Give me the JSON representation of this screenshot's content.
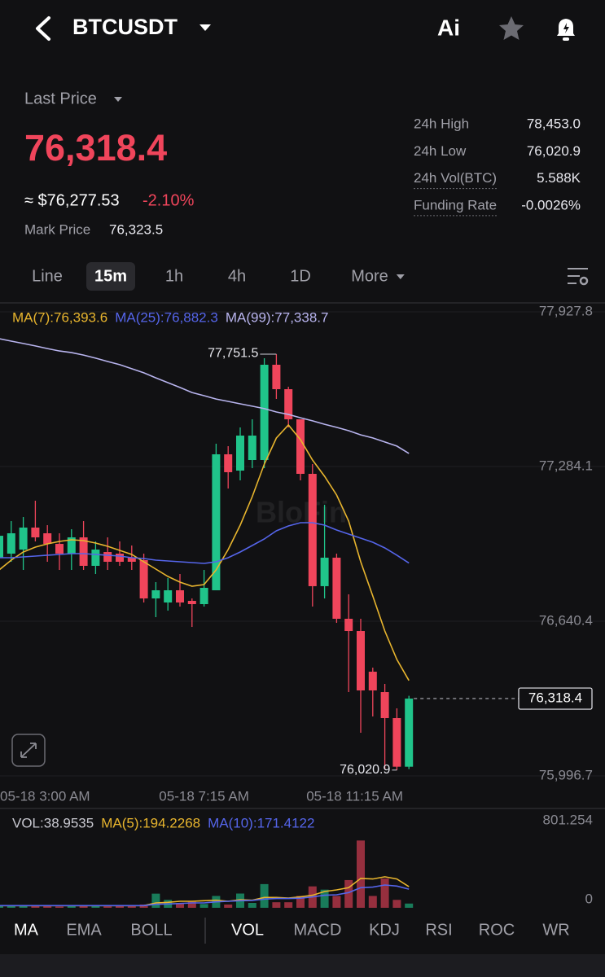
{
  "header": {
    "symbol": "BTCUSDT",
    "ai": "Ai"
  },
  "ticker": {
    "last_price_label": "Last Price",
    "last_price": "76,318.4",
    "usd_price": "≈ $76,277.53",
    "change": "-2.10%",
    "mark_price_label": "Mark Price",
    "mark_price": "76,323.5",
    "stats": [
      {
        "label": "24h High",
        "value": "78,453.0"
      },
      {
        "label": "24h Low",
        "value": "76,020.9"
      },
      {
        "label": "24h Vol(BTC)",
        "value": "5.588K"
      },
      {
        "label": "Funding Rate",
        "value": "-0.0026%"
      }
    ]
  },
  "timeframes": {
    "items": [
      "Line",
      "15m",
      "1h",
      "4h",
      "1D",
      "More"
    ],
    "active": 1
  },
  "watermark": "BloFin",
  "chart_data": [
    {
      "type": "candlestick",
      "categories": [
        "05-18 3:00 AM",
        null,
        null,
        null,
        null,
        null,
        null,
        null,
        null,
        null,
        null,
        null,
        null,
        null,
        null,
        null,
        null,
        "05-18 7:15 AM",
        null,
        null,
        null,
        null,
        null,
        null,
        null,
        null,
        null,
        null,
        null,
        null,
        null,
        null,
        null,
        "05-18 11:15 AM",
        null
      ],
      "open": [
        76904.8,
        76921.6,
        76938.5,
        77030,
        77006.3,
        76962.2,
        76921.6,
        76989.3,
        76870.8,
        76928.3,
        76921.6,
        76904.8,
        76894.5,
        76735.2,
        76718.3,
        76769.1,
        76725.1,
        76711.5,
        76769.1,
        77334.9,
        77267.1,
        77311.2,
        77311.2,
        77707.6,
        77605.9,
        77480.6,
        77253.6,
        76786.2,
        76904.8,
        76650.5,
        76599.7,
        76430.3,
        76345.6,
        76237.2,
        76035
      ],
      "high": [
        77057,
        77057,
        77074,
        77141.8,
        77040.1,
        77006.3,
        77023.2,
        77057,
        76972.4,
        76989.3,
        76972.4,
        76955.4,
        76921.6,
        76803,
        76820,
        76836.9,
        76735.2,
        76853.8,
        77378.9,
        77368.8,
        77446.7,
        77480.6,
        77734.7,
        77751.5,
        77616.1,
        77480.6,
        77294.2,
        77124.8,
        76921.6,
        76752.2,
        76650.5,
        76447.2,
        76379.5,
        76277.8,
        76330
      ],
      "low": [
        76718.3,
        76887.7,
        76853.8,
        76972.4,
        76887.7,
        76853.8,
        76853.8,
        76853.8,
        76836.9,
        76853.8,
        76870.8,
        76853.8,
        76718.3,
        76657.3,
        76684.4,
        76701.3,
        76616.6,
        76701.3,
        76769.1,
        77192.6,
        77226.5,
        77277.3,
        77277.3,
        77565.3,
        77446.7,
        77226.5,
        76701.3,
        76735.2,
        76633.6,
        76345.6,
        76176.2,
        76244,
        76023.7,
        76020.9,
        76025
      ],
      "close": [
        76995.9,
        77006.3,
        77030,
        76989.3,
        76962.2,
        76921.6,
        76989.3,
        76870.8,
        76938.5,
        76887.7,
        76887.7,
        76887.7,
        76735.2,
        76769.1,
        76769.1,
        76718.3,
        76711.5,
        76779.3,
        77334.9,
        77260.4,
        77412.8,
        77412.8,
        77707.6,
        77605.9,
        77480.6,
        77253.6,
        76786.2,
        76904.8,
        76650.5,
        76599.7,
        76352.4,
        76352.4,
        76237.2,
        76035,
        76318.4
      ],
      "colors": {
        "up": "#20c48a",
        "down": "#f0455b"
      },
      "series": [
        {
          "name": "MA(7):76,393.6",
          "color": "#e8b52e",
          "values": [
            76853.8,
            76894.5,
            76928.3,
            76948.7,
            76962.2,
            76972.4,
            76979.2,
            76975.8,
            76965.6,
            76952.1,
            76935.1,
            76918.2,
            76887.7,
            76857.2,
            76826.7,
            76803,
            76786.2,
            76792.9,
            76853.8,
            76938.5,
            77040.1,
            77158.8,
            77294.3,
            77402.7,
            77456.9,
            77395.9,
            77311.2,
            77243.4,
            77165.5,
            77057,
            76887.7,
            76745.4,
            76599.7,
            76481.1,
            76393.6
          ]
        },
        {
          "name": "MA(25):76,882.3",
          "color": "#5565ea",
          "values": [
            76904.8,
            76904.8,
            76908.2,
            76911.6,
            76915,
            76918.2,
            76921.6,
            76921.6,
            76918.2,
            76915,
            76911.6,
            76904.8,
            76901.4,
            76894.5,
            76891.1,
            76887.7,
            76884.3,
            76880.9,
            76887.7,
            76904.8,
            76928.3,
            76955.4,
            76982.5,
            77016.4,
            77036.7,
            77050.3,
            77050.3,
            77040.1,
            77019.8,
            77002.9,
            76985.9,
            76969,
            76945.3,
            76915,
            76882.3
          ]
        },
        {
          "name": "MA(99):77,338.7",
          "color": "#b8b4ee",
          "values": [
            77816,
            77806,
            77796,
            77786,
            77775,
            77765,
            77758,
            77748,
            77735,
            77721,
            77708,
            77691,
            77674,
            77653,
            77633,
            77613,
            77592,
            77579,
            77565,
            77555,
            77545,
            77535,
            77525,
            77511,
            77501,
            77487,
            77474,
            77460,
            77447,
            77433,
            77416,
            77403,
            77386,
            77369,
            77338.7
          ]
        }
      ],
      "annotations": [
        {
          "value": 77751.5,
          "label": "77,751.5",
          "index": 23
        },
        {
          "value": 76020.9,
          "label": "76,020.9",
          "index": 33
        }
      ],
      "price_tag": {
        "value": 76318.4,
        "label": "76,318.4"
      },
      "ylim": [
        75996.7,
        77927.8
      ],
      "yticks": [
        {
          "value": 77927.8,
          "label": "77,927.8"
        },
        {
          "value": 77284.1,
          "label": "77,284.1"
        },
        {
          "value": 76640.4,
          "label": "76,640.4"
        },
        {
          "value": 75996.7,
          "label": "75,996.7"
        }
      ],
      "grid": true
    },
    {
      "type": "volume",
      "values": [
        22,
        18,
        25,
        15,
        20,
        12,
        18,
        24,
        16,
        14,
        20,
        15,
        30,
        130,
        73,
        40,
        55,
        35,
        109,
        30,
        131,
        45,
        218,
        51,
        51,
        109,
        197,
        167,
        109,
        255,
        619,
        109,
        269,
        73,
        38.9535
      ],
      "value_name": "VOL:38.9535",
      "value_color": "#c8c8d0",
      "series": [
        {
          "name": "MA(5):194.2268",
          "color": "#e8b52e",
          "values": [
            20,
            20,
            20,
            20,
            20,
            20,
            20,
            20,
            20,
            20,
            20,
            20,
            20,
            45,
            50,
            60,
            60,
            65,
            70,
            60,
            75,
            70,
            95,
            95,
            90,
            100,
            115,
            150,
            165,
            185,
            270,
            265,
            285,
            265,
            194.2268
          ]
        },
        {
          "name": "MA(10):171.4122",
          "color": "#5565ea",
          "values": [
            20,
            20,
            20,
            20,
            20,
            20,
            20,
            20,
            20,
            20,
            20,
            20,
            20,
            32,
            35,
            40,
            45,
            45,
            55,
            60,
            65,
            68,
            80,
            85,
            85,
            88,
            100,
            115,
            120,
            140,
            185,
            190,
            210,
            200,
            171.4122
          ]
        }
      ],
      "ylim": [
        0,
        801.254
      ],
      "yticks": [
        801.254,
        0
      ]
    }
  ],
  "indicators": {
    "items": [
      "MA",
      "EMA",
      "BOLL",
      "VOL",
      "MACD",
      "KDJ",
      "RSI",
      "ROC",
      "WR"
    ],
    "active": [
      0,
      3
    ]
  }
}
